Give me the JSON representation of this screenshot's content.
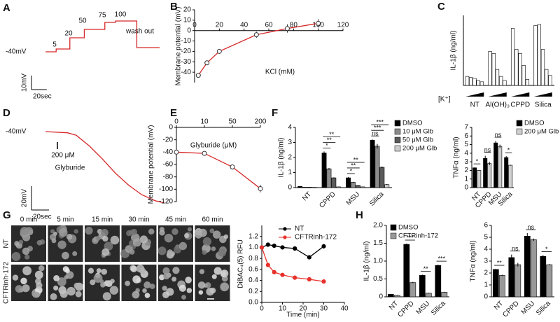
{
  "chart_data": [
    {
      "panel": "A",
      "type": "trace",
      "color": "#d62728",
      "x": [
        0,
        14,
        14,
        32,
        32,
        51,
        51,
        78,
        78,
        92,
        92,
        120,
        120,
        150
      ],
      "values": [
        -40,
        -40,
        -38,
        -38,
        -30,
        -30,
        -24,
        -24,
        -19,
        -19,
        -18,
        -18,
        -37,
        -37
      ],
      "baseline_label": "-40mV",
      "annotations": [
        "5",
        "20",
        "50",
        "75",
        "100",
        "wash out"
      ],
      "scalebar": {
        "y_size": 10,
        "y_label": "10mV",
        "x_size": 20,
        "x_label": "20sec"
      }
    },
    {
      "panel": "B",
      "type": "line",
      "ylabel": "Membrane potential (mV)",
      "xlabel": "KCl (mM)",
      "color": "#d62728",
      "marker": "open",
      "x": [
        3,
        10,
        20,
        50,
        75,
        100
      ],
      "values": [
        -43,
        -31,
        -20,
        -4,
        2,
        7
      ],
      "errors": [
        1,
        1.5,
        2,
        3,
        4,
        4
      ],
      "xlim": [
        0,
        120
      ],
      "xticks": [
        0,
        20,
        40,
        60,
        80,
        100,
        120
      ],
      "ylim": [
        -50,
        20
      ],
      "yticks": [
        -40,
        -30,
        -20,
        -10,
        0,
        10,
        20
      ]
    },
    {
      "panel": "C",
      "type": "bar",
      "ylabel": "IL-1β (ng/ml)",
      "xlabel": "[K⁺]",
      "categories": [
        "NT",
        "Al(OH)₃",
        "CPPD",
        "Silica"
      ],
      "ylim": [
        0,
        3.5
      ],
      "yticks": [],
      "series": [
        {
          "color": "#ffffff",
          "values": [
            0.45,
            1.7,
            2.85,
            3.0
          ]
        },
        {
          "color": "#ffffff",
          "values": [
            0.4,
            1.6,
            1.8,
            3.05
          ]
        },
        {
          "color": "#ffffff",
          "values": [
            0.35,
            0.8,
            1.6,
            1.8
          ]
        },
        {
          "color": "#ffffff",
          "values": [
            0.25,
            0.45,
            1.0,
            0.8
          ]
        },
        {
          "color": "#ffffff",
          "values": [
            0.18,
            0.25,
            0.3,
            0.5
          ]
        }
      ]
    },
    {
      "panel": "D",
      "type": "trace",
      "color": "#d62728",
      "x": [
        0,
        25,
        35,
        50,
        65,
        80,
        95,
        110,
        125,
        136
      ],
      "values": [
        -40,
        -41,
        -43,
        -52,
        -63,
        -75,
        -85,
        -93,
        -98,
        -100
      ],
      "baseline_label": "-40mV",
      "annotations": [
        "200 μM",
        "Glyburide"
      ],
      "scalebar": {
        "y_size": 20,
        "y_label": "20mV",
        "x_size": 20,
        "x_label": "20sec"
      }
    },
    {
      "panel": "E",
      "type": "line",
      "ylabel": "Membrane potential (mV)",
      "xlabel": "Glyburide (μM)",
      "color": "#d62728",
      "marker": "open",
      "categories": [
        "0",
        "10",
        "50",
        "200"
      ],
      "values": [
        -40,
        -42,
        -64,
        -99
      ],
      "errors": [
        0,
        0,
        4,
        6
      ],
      "ylim": [
        -120,
        0
      ],
      "yticks": [
        0,
        -20,
        -40,
        -60,
        -80,
        -100,
        -120
      ]
    },
    {
      "panel": "F",
      "type": "bar",
      "ylabel": "IL-1β (ng/ml)",
      "categories": [
        "NT",
        "CPPD",
        "MSU",
        "Silica"
      ],
      "ylim": [
        0,
        4
      ],
      "yticks": [
        0,
        1,
        2,
        3,
        4
      ],
      "series": [
        {
          "name": "DMSO",
          "color": "#000000",
          "values": [
            0.08,
            2.3,
            0.65,
            3.15
          ],
          "errors": [
            0.02,
            0.1,
            0.05,
            0.05
          ]
        },
        {
          "name": "10 μM Glb",
          "color": "#8c8c8c",
          "values": [
            0.03,
            1.25,
            0.35,
            2.75
          ],
          "errors": [
            0.01,
            0.05,
            0.03,
            0.15
          ]
        },
        {
          "name": "50 μM Glb",
          "color": "#5a5a5a",
          "values": [
            0.03,
            0.65,
            0.15,
            1.35
          ],
          "errors": [
            0.01,
            0.03,
            0.02,
            0.05
          ]
        },
        {
          "name": "200 μM Glb",
          "color": "#cfcfcf",
          "values": [
            0.02,
            0.05,
            0.05,
            0.2
          ],
          "errors": [
            0.01,
            0.01,
            0.01,
            0.03
          ]
        }
      ],
      "annotations": [
        null,
        [
          "*",
          "**",
          "**"
        ],
        [
          "*",
          "**",
          "**"
        ],
        [
          "ns",
          "***",
          "***"
        ]
      ]
    },
    {
      "type": "bar",
      "ylabel": "TNFα (ng/ml)",
      "categories": [
        "NT",
        "CPPD",
        "MSU",
        "Silica"
      ],
      "ylim": [
        0,
        7
      ],
      "yticks": [
        0,
        1,
        2,
        3,
        4,
        5,
        6,
        7
      ],
      "series": [
        {
          "name": "DMSO",
          "color": "#000000",
          "values": [
            2.3,
            3.4,
            5.2,
            3.5
          ],
          "errors": [
            0.05,
            0.3,
            0.25,
            0.15
          ]
        },
        {
          "name": "200 μM Glb",
          "color": "#cfcfcf",
          "values": [
            2.0,
            2.8,
            4.8,
            2.6
          ],
          "errors": [
            0.05,
            0.2,
            0.2,
            0.05
          ]
        }
      ],
      "annotations": [
        "*",
        "ns",
        "ns",
        "*"
      ]
    },
    {
      "type": "line",
      "ylabel": "DiBAC₄(5) RFU",
      "xlabel": "Time (min)",
      "marker": "filled",
      "x": [
        0,
        3,
        6,
        10,
        16,
        23,
        30
      ],
      "xlim": [
        0,
        40
      ],
      "xticks": [
        0,
        10,
        20,
        30,
        40
      ],
      "ylim": [
        0,
        1.4
      ],
      "yticks": [
        {
          "value": 0,
          "label": "0.0"
        },
        0.2,
        0.4,
        0.6,
        0.8,
        {
          "value": 1,
          "label": "1.0"
        },
        1.2
      ],
      "series": [
        {
          "name": "NT",
          "color": "#000000",
          "values": [
            1.0,
            1.05,
            1.03,
            1.0,
            0.98,
            0.82,
            1.02
          ],
          "errors": [
            0.02,
            0.03,
            0.03,
            0.02,
            0.02,
            0.02,
            0.04
          ]
        },
        {
          "name": "CFTRinh-172",
          "color": "#e8302a",
          "values": [
            1.0,
            0.68,
            0.55,
            0.5,
            0.45,
            0.42,
            0.38
          ],
          "errors": [
            0.02,
            0.02,
            0.02,
            0.02,
            0.02,
            0.02,
            0.02
          ]
        }
      ]
    },
    {
      "panel": "H",
      "type": "bar",
      "ylabel": "IL-1β (ng/ml)",
      "categories": [
        "NT",
        "CPPD",
        "MSU",
        "Silica"
      ],
      "ylim": [
        0,
        2
      ],
      "yticks": [
        0,
        0.5,
        {
          "value": 1,
          "label": "1.0"
        },
        1.5,
        {
          "value": 2,
          "label": "2.0"
        }
      ],
      "series": [
        {
          "name": "DMSO",
          "color": "#000000",
          "values": [
            0.07,
            1.47,
            0.6,
            0.88
          ],
          "errors": [
            0.01,
            0.02,
            0.02,
            0.02
          ]
        },
        {
          "name": "CFTRinh-172",
          "color": "#999999",
          "values": [
            0.04,
            0.4,
            0.1,
            0.13
          ],
          "errors": [
            0.01,
            0.02,
            0.01,
            0.01
          ]
        }
      ],
      "annotations": [
        null,
        "***",
        "**",
        "***"
      ]
    },
    {
      "type": "bar",
      "ylabel": "TNFα (ng/ml)",
      "categories": [
        "NT",
        "CPPD",
        "MSU",
        "Silica"
      ],
      "ylim": [
        0,
        6
      ],
      "yticks": [
        0,
        1,
        2,
        3,
        4,
        5,
        6
      ],
      "series": [
        {
          "name": "DMSO",
          "color": "#000000",
          "values": [
            2.3,
            3.3,
            5.1,
            3.4
          ],
          "errors": [
            0.05,
            0.25,
            0.25,
            0.1
          ]
        },
        {
          "name": "CFTRinh-172",
          "color": "#999999",
          "values": [
            1.8,
            2.7,
            4.8,
            2.7
          ],
          "errors": [
            0.05,
            0.15,
            0.1,
            0.05
          ]
        }
      ],
      "annotations": [
        "**",
        "ns",
        "ns",
        "*"
      ]
    }
  ],
  "image_grid": {
    "panel": "G",
    "columns": [
      "0 min",
      "5 min",
      "15 min",
      "30 min",
      "45 min",
      "60 min"
    ],
    "rows": [
      "NT",
      "CFTRinh-172"
    ]
  }
}
